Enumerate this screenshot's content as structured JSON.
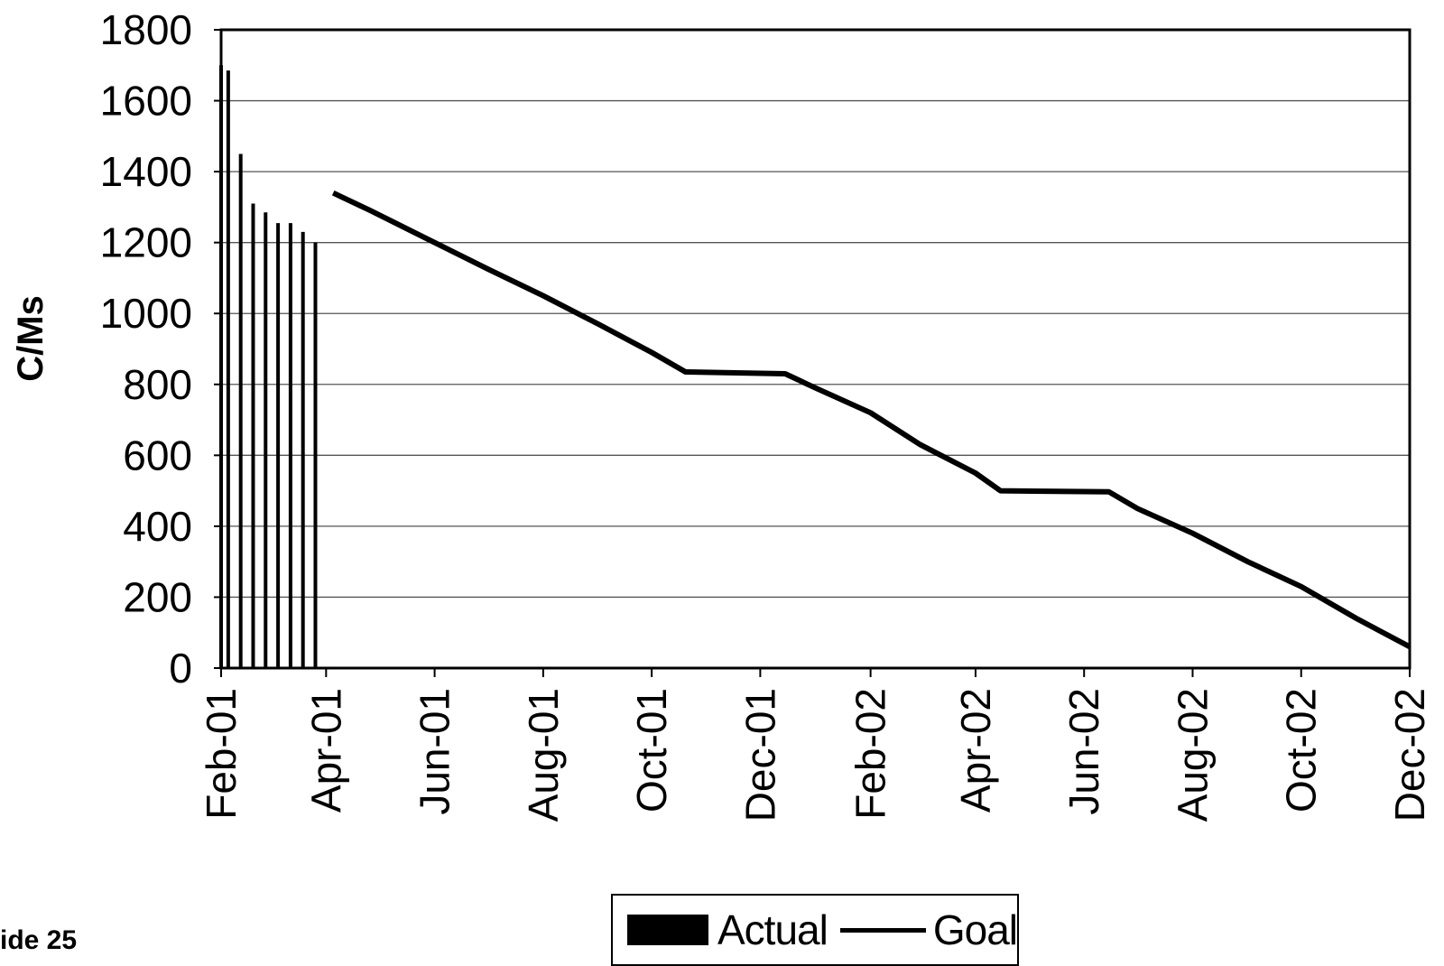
{
  "page": {
    "slide_label": "ide 25"
  },
  "chart_data": {
    "type": "bar+line",
    "title": "",
    "xlabel": "",
    "ylabel": "C/Ms",
    "ylim": [
      0,
      1800
    ],
    "yticks": [
      0,
      200,
      400,
      600,
      800,
      1000,
      1200,
      1400,
      1600,
      1800
    ],
    "x_range": [
      "2001-02-01",
      "2002-12-01"
    ],
    "xticks": [
      {
        "date": "2001-02-01",
        "label": "Feb-01"
      },
      {
        "date": "2001-04-01",
        "label": "Apr-01"
      },
      {
        "date": "2001-06-01",
        "label": "Jun-01"
      },
      {
        "date": "2001-08-01",
        "label": "Aug-01"
      },
      {
        "date": "2001-10-01",
        "label": "Oct-01"
      },
      {
        "date": "2001-12-01",
        "label": "Dec-01"
      },
      {
        "date": "2002-02-01",
        "label": "Feb-02"
      },
      {
        "date": "2002-04-01",
        "label": "Apr-02"
      },
      {
        "date": "2002-06-01",
        "label": "Jun-02"
      },
      {
        "date": "2002-08-01",
        "label": "Aug-02"
      },
      {
        "date": "2002-10-01",
        "label": "Oct-02"
      },
      {
        "date": "2002-12-01",
        "label": "Dec-02"
      }
    ],
    "grid": "horizontal",
    "legend": {
      "placement": "bottom",
      "entries": [
        "Actual",
        "Goal"
      ]
    },
    "series": [
      {
        "name": "Actual",
        "type": "bar",
        "points": [
          {
            "date": "2001-02-01",
            "value": 1700
          },
          {
            "date": "2001-02-05",
            "value": 1685
          },
          {
            "date": "2001-02-12",
            "value": 1450
          },
          {
            "date": "2001-02-19",
            "value": 1310
          },
          {
            "date": "2001-02-26",
            "value": 1285
          },
          {
            "date": "2001-03-05",
            "value": 1255
          },
          {
            "date": "2001-03-12",
            "value": 1255
          },
          {
            "date": "2001-03-19",
            "value": 1230
          },
          {
            "date": "2001-03-26",
            "value": 1200
          }
        ]
      },
      {
        "name": "Goal",
        "type": "line",
        "points": [
          {
            "date": "2001-04-05",
            "value": 1340
          },
          {
            "date": "2001-04-26",
            "value": 1290
          },
          {
            "date": "2001-05-10",
            "value": 1255
          },
          {
            "date": "2001-06-01",
            "value": 1200
          },
          {
            "date": "2001-07-01",
            "value": 1125
          },
          {
            "date": "2001-08-01",
            "value": 1050
          },
          {
            "date": "2001-09-01",
            "value": 970
          },
          {
            "date": "2001-10-01",
            "value": 890
          },
          {
            "date": "2001-10-20",
            "value": 835
          },
          {
            "date": "2001-12-15",
            "value": 830
          },
          {
            "date": "2002-01-01",
            "value": 790
          },
          {
            "date": "2002-02-01",
            "value": 720
          },
          {
            "date": "2002-03-01",
            "value": 630
          },
          {
            "date": "2002-04-01",
            "value": 550
          },
          {
            "date": "2002-04-15",
            "value": 500
          },
          {
            "date": "2002-06-15",
            "value": 497
          },
          {
            "date": "2002-07-01",
            "value": 450
          },
          {
            "date": "2002-08-01",
            "value": 380
          },
          {
            "date": "2002-09-01",
            "value": 300
          },
          {
            "date": "2002-10-01",
            "value": 230
          },
          {
            "date": "2002-11-01",
            "value": 140
          },
          {
            "date": "2002-12-01",
            "value": 60
          }
        ]
      }
    ]
  }
}
